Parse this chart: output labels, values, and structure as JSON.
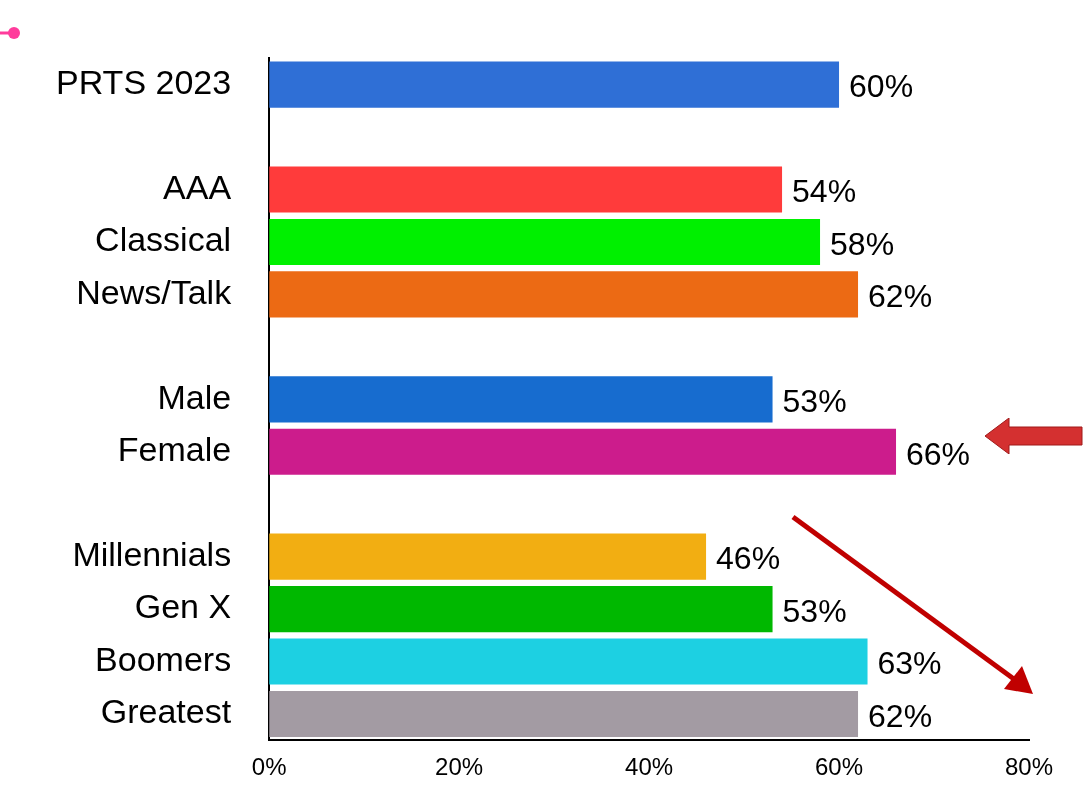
{
  "chart_data": {
    "type": "bar",
    "orientation": "horizontal",
    "categories": [
      "PRTS 2023",
      null,
      "AAA",
      "Classical",
      "News/Talk",
      null,
      "Male",
      "Female",
      null,
      "Millennials",
      "Gen X",
      "Boomers",
      "Greatest"
    ],
    "values": [
      60,
      null,
      54,
      58,
      62,
      null,
      53,
      66,
      null,
      46,
      53,
      63,
      62
    ],
    "colors": [
      "#2f6fd6",
      null,
      "#ff3b3b",
      "#00f000",
      "#ec6a14",
      null,
      "#176ccf",
      "#cc1c8c",
      null,
      "#f2ae12",
      "#00b800",
      "#1dd0e2",
      "#a39ba3"
    ],
    "value_labels": [
      "60%",
      null,
      "54%",
      "58%",
      "62%",
      null,
      "53%",
      "66%",
      null,
      "46%",
      "53%",
      "63%",
      "62%"
    ],
    "xlim": [
      0,
      80
    ],
    "xticks": [
      {
        "value": 0,
        "label": "0%"
      },
      {
        "value": 20,
        "label": "20%"
      },
      {
        "value": 40,
        "label": "40%"
      },
      {
        "value": 60,
        "label": "60%"
      },
      {
        "value": 80,
        "label": "80%"
      }
    ],
    "grid": false,
    "legend": false
  }
}
